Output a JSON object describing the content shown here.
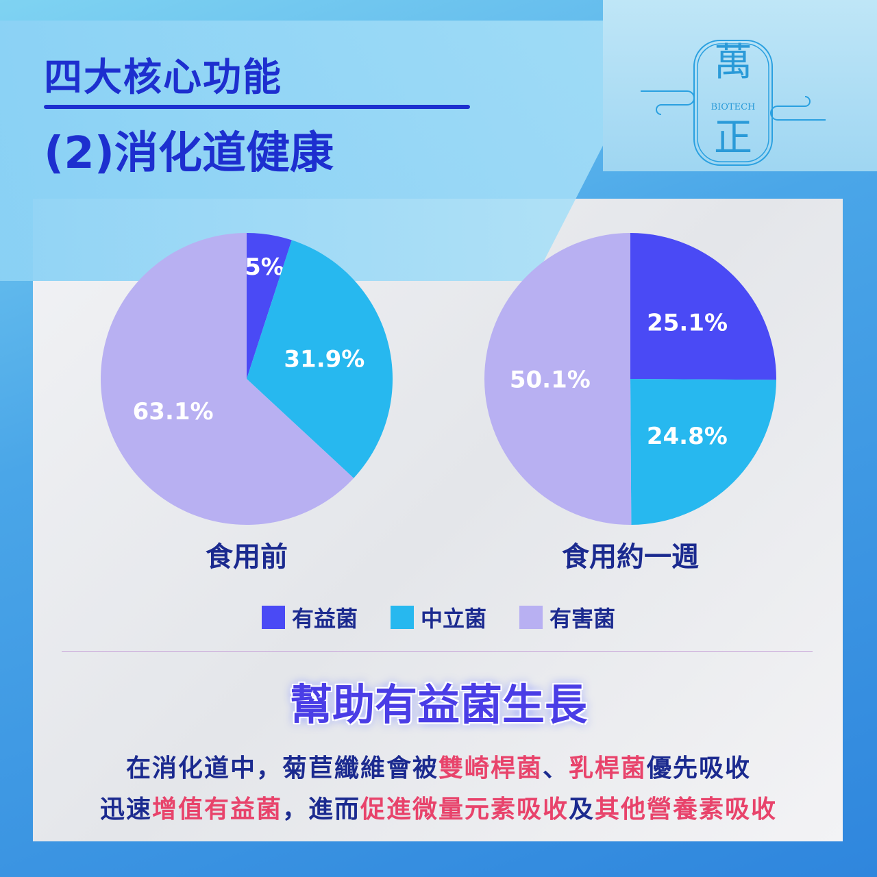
{
  "header": {
    "title": "四大核心功能",
    "subtitle": "(2)消化道健康"
  },
  "logo": {
    "top": "萬",
    "middle": "BIOTECH",
    "bottom": "正"
  },
  "colors": {
    "beneficial": "#4a4af5",
    "neutral": "#27b8ef",
    "harmful": "#b8b0f2",
    "title": "#1d2fcf",
    "highlight": "#e8436b"
  },
  "chart_data": [
    {
      "type": "pie",
      "title": "食用前",
      "categories": [
        "有益菌",
        "中立菌",
        "有害菌"
      ],
      "values": [
        5,
        31.9,
        63.1
      ],
      "labels": [
        "5%",
        "31.9%",
        "63.1%"
      ],
      "start": "12 o'clock, clockwise"
    },
    {
      "type": "pie",
      "title": "食用約一週",
      "categories": [
        "有益菌",
        "中立菌",
        "有害菌"
      ],
      "values": [
        25.1,
        24.8,
        50.1
      ],
      "labels": [
        "25.1%",
        "24.8%",
        "50.1%"
      ],
      "start": "12 o'clock, clockwise"
    }
  ],
  "legend": [
    "有益菌",
    "中立菌",
    "有害菌"
  ],
  "headline": "幫助有益菌生長",
  "body": {
    "line1": [
      {
        "t": "在消化道中，菊苣纖維會被",
        "h": false
      },
      {
        "t": "雙崎桿菌",
        "h": true
      },
      {
        "t": "、",
        "h": false
      },
      {
        "t": "乳桿菌",
        "h": true
      },
      {
        "t": "優先吸收",
        "h": false
      }
    ],
    "line2": [
      {
        "t": "迅速",
        "h": false
      },
      {
        "t": "增值有益菌",
        "h": true
      },
      {
        "t": "，進而",
        "h": false
      },
      {
        "t": "促進微量元素吸收",
        "h": true
      },
      {
        "t": "及",
        "h": false
      },
      {
        "t": "其他營養素吸收",
        "h": true
      }
    ]
  }
}
